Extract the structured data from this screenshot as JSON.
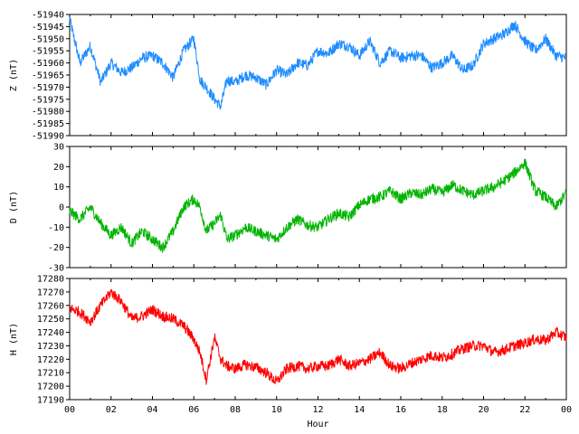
{
  "chart_data": [
    {
      "type": "line",
      "id": "z",
      "ylabel": "Z (nT)",
      "color": "#1e8cff",
      "ylim": [
        -51990,
        -51940
      ],
      "yticks": [
        -51940,
        -51945,
        -51950,
        -51955,
        -51960,
        -51965,
        -51970,
        -51975,
        -51980,
        -51985,
        -51990
      ],
      "xlim": [
        0,
        24
      ],
      "series": [
        {
          "x": [
            0,
            0.5,
            1,
            1.5,
            2,
            2.5,
            3,
            3.5,
            4,
            4.5,
            5,
            5.5,
            6,
            6.3,
            6.6,
            7,
            7.3,
            7.6,
            8,
            8.5,
            9,
            9.5,
            10,
            10.5,
            11,
            11.5,
            12,
            12.5,
            13,
            13.5,
            14,
            14.5,
            15,
            15.5,
            16,
            16.5,
            17,
            17.5,
            18,
            18.5,
            19,
            19.5,
            20,
            20.5,
            21,
            21.5,
            22,
            22.5,
            23,
            23.5,
            24
          ],
          "values": [
            -51942,
            -51960,
            -51953,
            -51968,
            -51960,
            -51964,
            -51962,
            -51958,
            -51957,
            -51960,
            -51966,
            -51955,
            -51950,
            -51967,
            -51970,
            -51975,
            -51978,
            -51967,
            -51968,
            -51965,
            -51966,
            -51969,
            -51963,
            -51965,
            -51960,
            -51961,
            -51955,
            -51956,
            -51952,
            -51953,
            -51957,
            -51951,
            -51960,
            -51955,
            -51958,
            -51957,
            -51957,
            -51962,
            -51960,
            -51957,
            -51963,
            -51961,
            -51952,
            -51950,
            -51948,
            -51944,
            -51951,
            -51955,
            -51950,
            -51957,
            -51958
          ]
        }
      ]
    },
    {
      "type": "line",
      "id": "d",
      "ylabel": "D (nT)",
      "color": "#00b400",
      "ylim": [
        -30,
        30
      ],
      "yticks": [
        30,
        20,
        10,
        0,
        -10,
        -20,
        -30
      ],
      "xlim": [
        0,
        24
      ],
      "series": [
        {
          "x": [
            0,
            0.5,
            1,
            1.5,
            2,
            2.5,
            3,
            3.5,
            4,
            4.5,
            5,
            5.5,
            6,
            6.3,
            6.6,
            7,
            7.3,
            7.6,
            8,
            8.5,
            9,
            9.5,
            10,
            10.5,
            11,
            11.5,
            12,
            12.5,
            13,
            13.5,
            14,
            14.5,
            15,
            15.5,
            16,
            16.5,
            17,
            17.5,
            18,
            18.5,
            19,
            19.5,
            20,
            20.5,
            21,
            21.5,
            22,
            22.5,
            23,
            23.5,
            24
          ],
          "values": [
            -2,
            -6,
            0,
            -8,
            -14,
            -10,
            -18,
            -12,
            -16,
            -20,
            -12,
            0,
            4,
            0,
            -12,
            -8,
            -4,
            -16,
            -14,
            -10,
            -12,
            -14,
            -16,
            -10,
            -6,
            -9,
            -10,
            -6,
            -3,
            -5,
            1,
            4,
            5,
            8,
            4,
            7,
            6,
            9,
            7,
            11,
            8,
            6,
            8,
            10,
            13,
            17,
            22,
            8,
            5,
            0,
            7
          ]
        }
      ]
    },
    {
      "type": "line",
      "id": "h",
      "ylabel": "H (nT)",
      "color": "#ff0000",
      "ylim": [
        17190,
        17280
      ],
      "yticks": [
        17280,
        17270,
        17260,
        17250,
        17240,
        17230,
        17220,
        17210,
        17200,
        17190
      ],
      "xlim": [
        0,
        24
      ],
      "series": [
        {
          "x": [
            0,
            0.5,
            1,
            1.5,
            2,
            2.5,
            3,
            3.5,
            4,
            4.5,
            5,
            5.5,
            6,
            6.3,
            6.6,
            7,
            7.3,
            7.6,
            8,
            8.5,
            9,
            9.5,
            10,
            10.5,
            11,
            11.5,
            12,
            12.5,
            13,
            13.5,
            14,
            14.5,
            15,
            15.5,
            16,
            16.5,
            17,
            17.5,
            18,
            18.5,
            19,
            19.5,
            20,
            20.5,
            21,
            21.5,
            22,
            22.5,
            23,
            23.5,
            24
          ],
          "values": [
            17258,
            17255,
            17248,
            17260,
            17270,
            17263,
            17250,
            17252,
            17257,
            17252,
            17250,
            17245,
            17235,
            17225,
            17205,
            17236,
            17220,
            17215,
            17213,
            17216,
            17214,
            17210,
            17203,
            17213,
            17215,
            17213,
            17215,
            17215,
            17220,
            17215,
            17217,
            17220,
            17225,
            17215,
            17213,
            17217,
            17220,
            17223,
            17221,
            17224,
            17228,
            17230,
            17230,
            17225,
            17227,
            17230,
            17232,
            17235,
            17234,
            17240,
            17236
          ]
        }
      ]
    }
  ],
  "xaxis": {
    "label": "Hour",
    "ticks": [
      "00",
      "02",
      "04",
      "06",
      "08",
      "10",
      "12",
      "14",
      "16",
      "18",
      "20",
      "22",
      "00"
    ]
  }
}
